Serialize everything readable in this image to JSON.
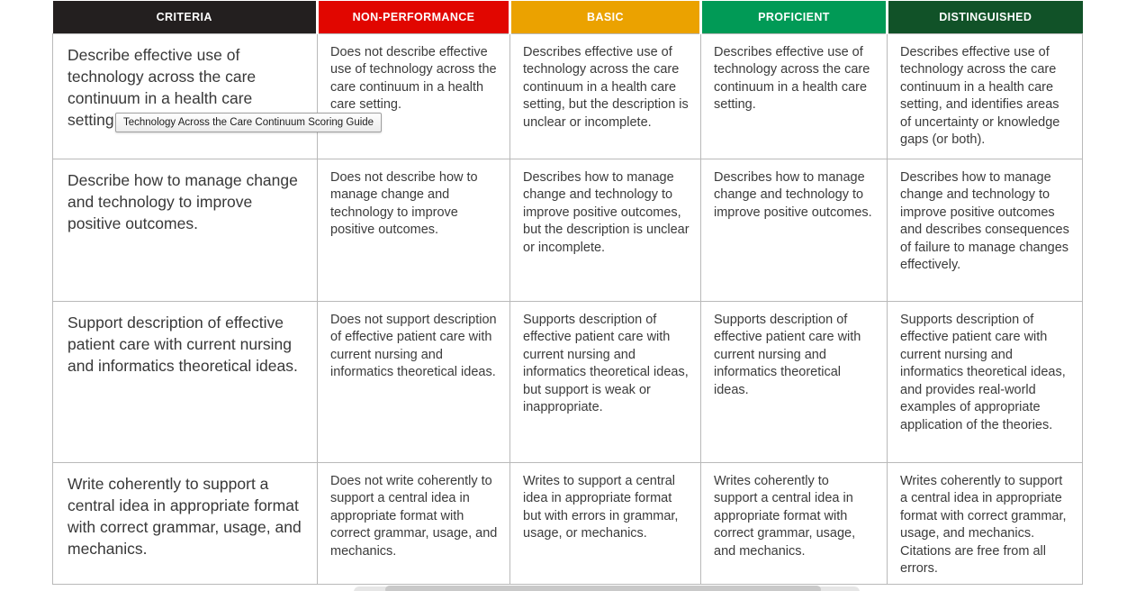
{
  "tooltip": {
    "text": "Technology Across the Care Continuum Scoring Guide"
  },
  "table": {
    "columns": [
      {
        "label": "CRITERIA",
        "color": "#231f1f"
      },
      {
        "label": "NON-PERFORMANCE",
        "color": "#e10600"
      },
      {
        "label": "BASIC",
        "color": "#eba200"
      },
      {
        "label": "PROFICIENT",
        "color": "#019a56"
      },
      {
        "label": "DISTINGUISHED",
        "color": "#115228"
      }
    ],
    "rows": [
      {
        "cells": [
          "Describe effective use of technology across the care continuum in a health care setting.",
          "Does not describe effective use of technology across the care continuum in a health care setting.",
          "Describes effective use of technology across the care continuum in a health care setting, but the description is unclear or incomplete.",
          "Describes effective use of technology across the care continuum in a health care setting.",
          "Describes effective use of technology across the care continuum in a health care setting, and identifies areas of uncertainty or knowledge gaps (or both)."
        ]
      },
      {
        "cells": [
          "Describe how to manage change and technology to improve positive outcomes.",
          "Does not describe how to manage change and technology to improve positive outcomes.",
          "Describes how to manage change and technology to improve positive outcomes, but the description is unclear or incomplete.",
          "Describes how to manage change and technology to improve positive outcomes.",
          "Describes how to manage change and technology to improve positive outcomes and describes consequences of failure to manage changes effectively."
        ]
      },
      {
        "cells": [
          "Support description of effective patient care with current nursing and informatics theoretical ideas.",
          "Does not support description of effective patient care with current nursing and informatics theoretical ideas.",
          "Supports description of effective patient care with current nursing and informatics theoretical ideas, but support is weak or inappropriate.",
          "Supports description of effective patient care with current nursing and informatics theoretical ideas.",
          "Supports description of effective patient care with current nursing and informatics theoretical ideas, and provides real-world examples of appropriate application of the theories."
        ]
      },
      {
        "cells": [
          "Write coherently to support a central idea in appropriate format with correct grammar, usage, and mechanics.",
          "Does not write coherently to support a central idea in appropriate format with correct grammar, usage, and mechanics.",
          "Writes to support a central idea in appropriate format but with errors in grammar, usage, or mechanics.",
          "Writes coherently to support a central idea in appropriate format with correct grammar, usage, and mechanics.",
          "Writes coherently to support a central idea in appropriate format with correct grammar, usage, and mechanics. Citations are free from all errors."
        ]
      }
    ]
  }
}
